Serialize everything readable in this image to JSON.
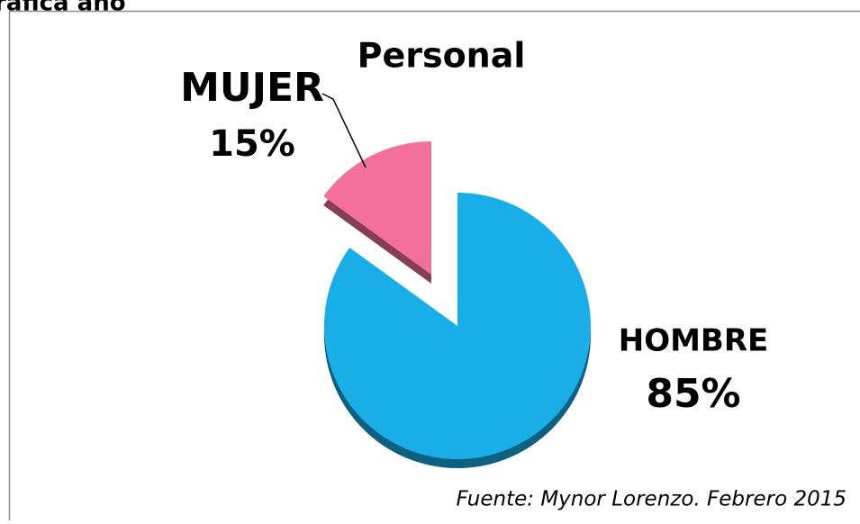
{
  "header": {
    "title": "rafica año"
  },
  "chart_data": {
    "type": "pie",
    "title": "Personal",
    "categories": [
      "HOMBRE",
      "MUJER"
    ],
    "values": [
      85,
      15
    ],
    "value_labels": [
      "85%",
      "15%"
    ],
    "colors": [
      "#1aaee8",
      "#f4709c"
    ],
    "source": "Fuente: Mynor Lorenzo. Febrero 2015"
  }
}
